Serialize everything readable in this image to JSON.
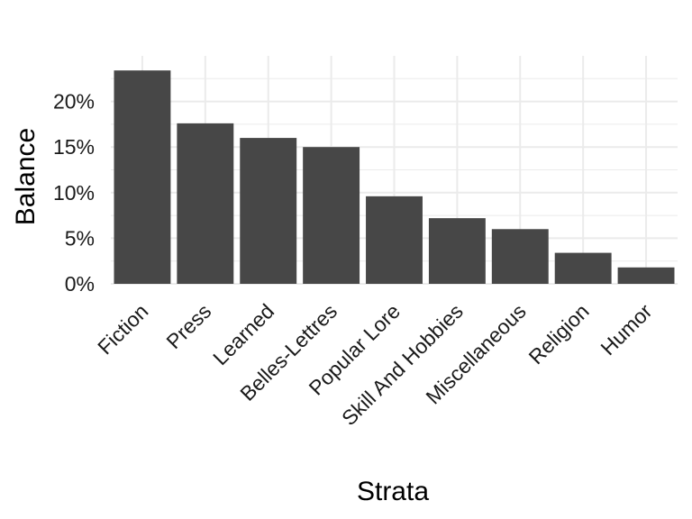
{
  "chart_data": {
    "type": "bar",
    "categories": [
      "Fiction",
      "Press",
      "Learned",
      "Belles-Lettres",
      "Popular Lore",
      "Skill And Hobbies",
      "Miscellaneous",
      "Religion",
      "Humor"
    ],
    "values": [
      23.4,
      17.6,
      16.0,
      15.0,
      9.6,
      7.2,
      6.0,
      3.4,
      1.8
    ],
    "title": "",
    "xlabel": "Strata",
    "ylabel": "Balance",
    "ylim": [
      0,
      25
    ],
    "yticks": [
      0,
      5,
      10,
      15,
      20
    ],
    "ytick_labels": [
      "0%",
      "5%",
      "10%",
      "15%",
      "20%"
    ],
    "grid": true,
    "legend": "none",
    "bar_color": "#474747",
    "grid_color": "#ebebeb"
  }
}
